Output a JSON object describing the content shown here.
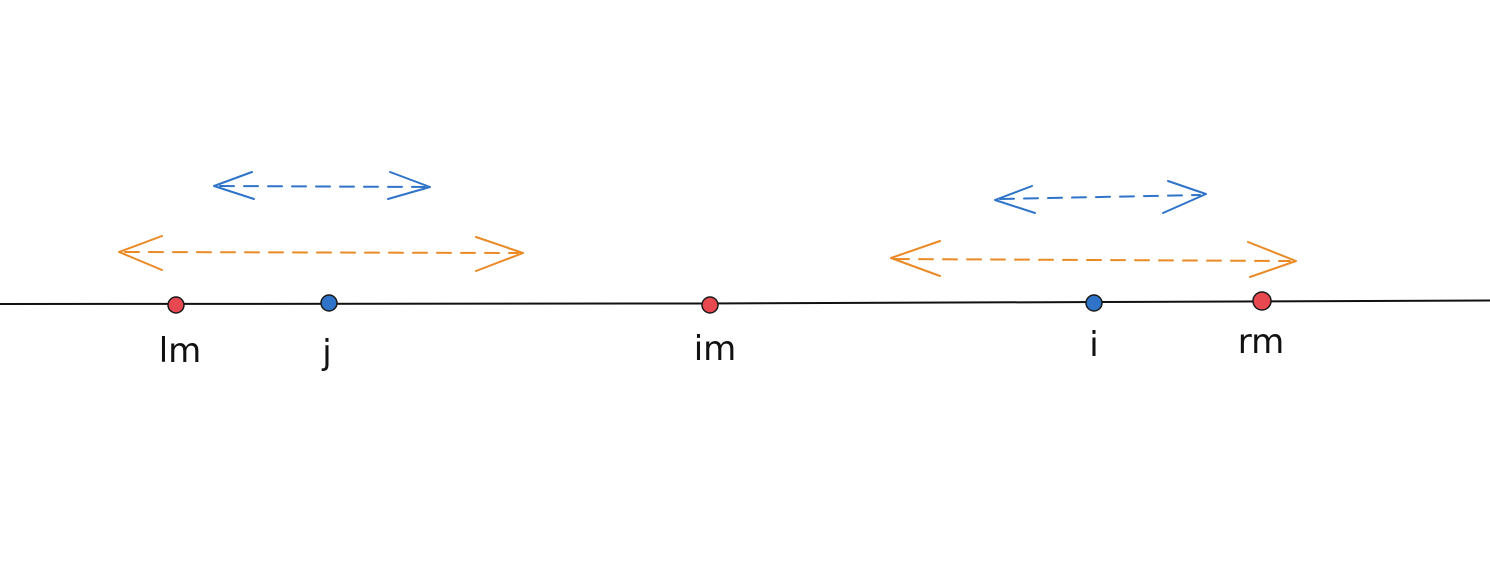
{
  "points": [
    {
      "label": "lm",
      "kind": "marker",
      "color": "#e8484f"
    },
    {
      "label": "j",
      "kind": "pointer",
      "color": "#2f74c8"
    },
    {
      "label": "im",
      "kind": "marker",
      "color": "#e8484f"
    },
    {
      "label": "i",
      "kind": "pointer",
      "color": "#2f74c8"
    },
    {
      "label": "rm",
      "kind": "marker",
      "color": "#e8484f"
    }
  ],
  "ranges": [
    {
      "name": "left-inner-range",
      "color": "#2f74c8"
    },
    {
      "name": "left-outer-range",
      "color": "#ea8a26"
    },
    {
      "name": "right-inner-range",
      "color": "#2f74c8"
    },
    {
      "name": "right-outer-range",
      "color": "#ea8a26"
    }
  ],
  "colors": {
    "line": "#111111",
    "marker_outline": "#1a1a1a"
  }
}
